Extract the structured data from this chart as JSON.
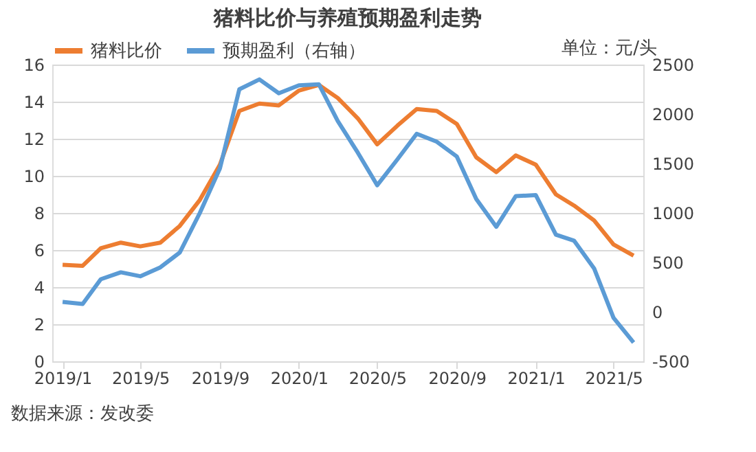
{
  "chart_data": {
    "type": "line",
    "title": "猪料比价与养殖预期盈利走势",
    "x": [
      "2019-01",
      "2019-02",
      "2019-03",
      "2019-04",
      "2019-05",
      "2019-06",
      "2019-07",
      "2019-08",
      "2019-09",
      "2019-10",
      "2019-11",
      "2019-12",
      "2020-01",
      "2020-02",
      "2020-03",
      "2020-04",
      "2020-05",
      "2020-06",
      "2020-07",
      "2020-08",
      "2020-09",
      "2020-10",
      "2020-11",
      "2020-12",
      "2021-01",
      "2021-02",
      "2021-03",
      "2021-04",
      "2021-05",
      "2021-06"
    ],
    "series": [
      {
        "name": "猪料比价",
        "color": "#ed7d31",
        "values": [
          5.2,
          5.15,
          6.1,
          6.4,
          6.2,
          6.4,
          7.3,
          8.7,
          10.6,
          13.5,
          13.9,
          13.8,
          14.6,
          14.9,
          14.2,
          13.1,
          11.7,
          12.7,
          13.6,
          13.5,
          12.8,
          11.0,
          10.2,
          11.1,
          10.6,
          9.0,
          8.4,
          7.6,
          6.3,
          5.7
        ]
      },
      {
        "name": "预期盈利（右轴）",
        "color": "#5b9bd5",
        "axis": "y2",
        "values": [
          100,
          80,
          330,
          400,
          360,
          450,
          600,
          1000,
          1450,
          2250,
          2350,
          2210,
          2290,
          2300,
          1930,
          1610,
          1280,
          1540,
          1800,
          1720,
          1570,
          1140,
          860,
          1170,
          1180,
          780,
          720,
          440,
          -60,
          -310
        ]
      }
    ],
    "xlim": [
      "2018-12-16",
      "2021-06-16"
    ],
    "xticks": [
      {
        "value": "2019-01",
        "label": "2019/1"
      },
      {
        "value": "2019-05",
        "label": "2019/5"
      },
      {
        "value": "2019-09",
        "label": "2019/9"
      },
      {
        "value": "2020-01",
        "label": "2020/1"
      },
      {
        "value": "2020-05",
        "label": "2020/5"
      },
      {
        "value": "2020-09",
        "label": "2020/9"
      },
      {
        "value": "2021-01",
        "label": "2021/1"
      },
      {
        "value": "2021-05",
        "label": "2021/5"
      }
    ],
    "ylim": [
      0,
      16
    ],
    "yticks": [
      0,
      2,
      4,
      6,
      8,
      10,
      12,
      14,
      16
    ],
    "y2lim": [
      -500,
      2500
    ],
    "y2ticks": [
      -500,
      0,
      500,
      1000,
      1500,
      2000,
      2500
    ],
    "grid": "y",
    "legend": "top",
    "line_style": "solid",
    "marker": "none",
    "annotations": [
      "单位：元/头",
      "数据来源：发改委"
    ]
  }
}
